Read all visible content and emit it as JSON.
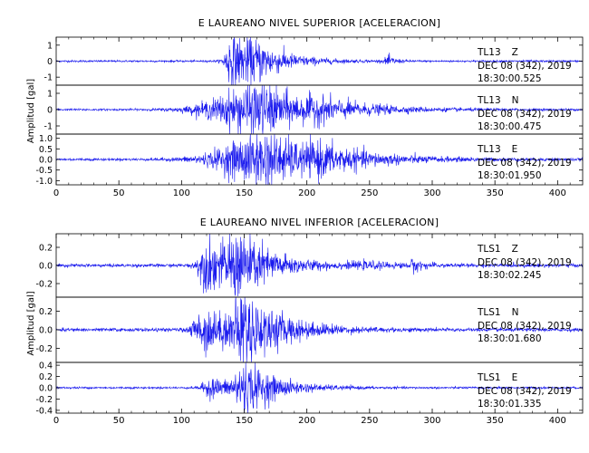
{
  "chart_data": [
    {
      "type": "line",
      "title": "E LAUREANO NIVEL SUPERIOR [ACELERACION]",
      "ylabel": "Amplitud [gal]",
      "xlabel": "",
      "xlim": [
        0,
        420
      ],
      "xticks": [
        "0",
        "50",
        "100",
        "150",
        "200",
        "250",
        "300",
        "350",
        "400"
      ],
      "series": [
        {
          "station": "TL13",
          "component": "Z",
          "date": "DEC 08 (342), 2019",
          "time": "18:30:00.525",
          "ylim": [
            -1.5,
            1.5
          ],
          "yticks": [
            "1",
            "0",
            "-1"
          ],
          "background_amp": 0.05,
          "bursts": [
            {
              "t": 140,
              "amp": 1.4,
              "rise": 5,
              "decay": 20
            },
            {
              "t": 163,
              "amp": 0.6,
              "rise": 15,
              "decay": 25
            },
            {
              "t": 265,
              "amp": 0.25,
              "rise": 3,
              "decay": 6
            }
          ]
        },
        {
          "station": "TL13",
          "component": "N",
          "date": "DEC 08 (342), 2019",
          "time": "18:30:00.475",
          "ylim": [
            -1.5,
            1.5
          ],
          "yticks": [
            "1",
            "0",
            "-1"
          ],
          "background_amp": 0.05,
          "bursts": [
            {
              "t": 165,
              "amp": 1.4,
              "rise": 40,
              "decay": 40
            },
            {
              "t": 210,
              "amp": 0.25,
              "rise": 10,
              "decay": 40
            }
          ]
        },
        {
          "station": "TL13",
          "component": "E",
          "date": "DEC 08 (342), 2019",
          "time": "18:30:01.950",
          "ylim": [
            -1.2,
            1.2
          ],
          "yticks": [
            "1.0",
            "0.5",
            "0.0",
            "-0.5",
            "-1.0"
          ],
          "background_amp": 0.05,
          "bursts": [
            {
              "t": 170,
              "amp": 1.1,
              "rise": 40,
              "decay": 40
            },
            {
              "t": 210,
              "amp": 0.3,
              "rise": 10,
              "decay": 45
            }
          ]
        }
      ]
    },
    {
      "type": "line",
      "title": "E LAUREANO NIVEL INFERIOR [ACELERACION]",
      "ylabel": "Amplitud [gal]",
      "xlabel": "",
      "xlim": [
        0,
        420
      ],
      "xticks": [
        "0",
        "50",
        "100",
        "150",
        "200",
        "250",
        "300",
        "350",
        "400"
      ],
      "series": [
        {
          "station": "TLS1",
          "component": "Z",
          "date": "DEC 08 (342), 2019",
          "time": "18:30:02.245",
          "ylim": [
            -0.35,
            0.35
          ],
          "yticks": [
            "0.2",
            "0.0",
            "-0.2"
          ],
          "background_amp": 0.015,
          "bursts": [
            {
              "t": 122,
              "amp": 0.25,
              "rise": 8,
              "decay": 25
            },
            {
              "t": 148,
              "amp": 0.25,
              "rise": 10,
              "decay": 25
            },
            {
              "t": 250,
              "amp": 0.02,
              "rise": 20,
              "decay": 40
            },
            {
              "t": 285,
              "amp": 0.05,
              "rise": 2,
              "decay": 6
            }
          ]
        },
        {
          "station": "TLS1",
          "component": "N",
          "date": "DEC 08 (342), 2019",
          "time": "18:30:01.680",
          "ylim": [
            -0.35,
            0.35
          ],
          "yticks": [
            "0.2",
            "0.0",
            "-0.2"
          ],
          "background_amp": 0.015,
          "bursts": [
            {
              "t": 120,
              "amp": 0.2,
              "rise": 10,
              "decay": 25
            },
            {
              "t": 150,
              "amp": 0.3,
              "rise": 10,
              "decay": 30
            }
          ]
        },
        {
          "station": "TLS1",
          "component": "E",
          "date": "DEC 08 (342), 2019",
          "time": "18:30:01.335",
          "ylim": [
            -0.45,
            0.45
          ],
          "yticks": [
            "0.4",
            "0.2",
            "0.0",
            "-0.2",
            "-0.4"
          ],
          "background_amp": 0.015,
          "bursts": [
            {
              "t": 125,
              "amp": 0.15,
              "rise": 8,
              "decay": 20
            },
            {
              "t": 150,
              "amp": 0.38,
              "rise": 8,
              "decay": 25
            }
          ]
        }
      ]
    }
  ],
  "colors": {
    "trace": "#1a1aee",
    "axis": "#000000",
    "label": "#000000"
  }
}
